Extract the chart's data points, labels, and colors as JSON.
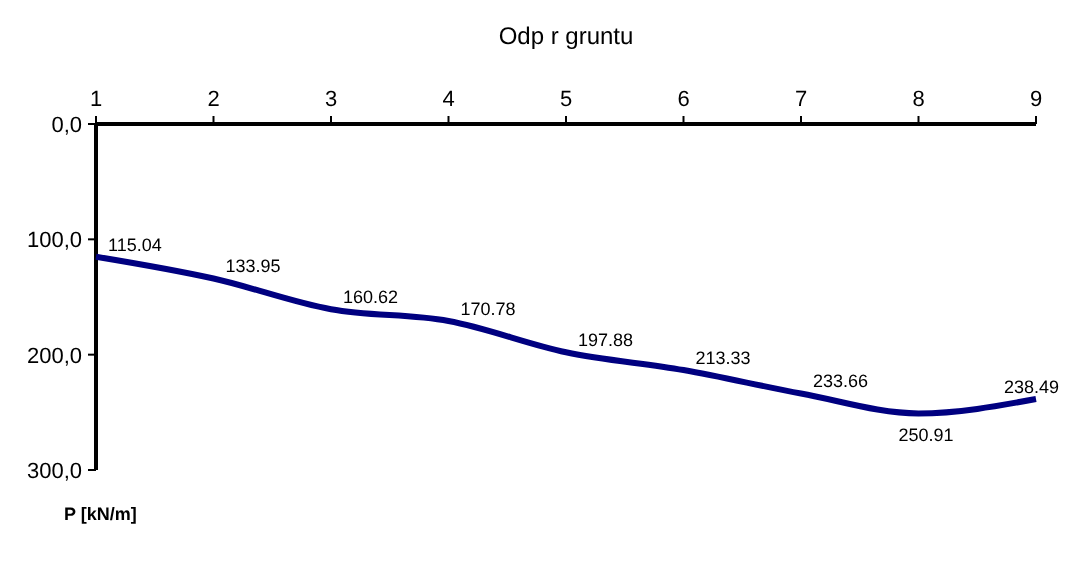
{
  "chart_data": {
    "type": "line",
    "title": "Odp  r gruntu",
    "ylabel": "P [kN/m]",
    "x": [
      1,
      2,
      3,
      4,
      5,
      6,
      7,
      8,
      9
    ],
    "series": [
      {
        "color": "#000080",
        "values": [
          115.04,
          133.95,
          160.62,
          170.78,
          197.88,
          213.33,
          233.66,
          250.91,
          238.49
        ]
      }
    ],
    "xlim": [
      1,
      9
    ],
    "xticks": [
      1,
      2,
      3,
      4,
      5,
      6,
      7,
      8,
      9
    ],
    "ylim": [
      300,
      0
    ],
    "yticks": [
      {
        "value": 0,
        "label": "0,0"
      },
      {
        "value": 100,
        "label": "100,0"
      },
      {
        "value": 200,
        "label": "200,0"
      },
      {
        "value": 300,
        "label": "300,0"
      }
    ],
    "data_labels": true,
    "grid": false,
    "marker": "none",
    "line_style": "solid"
  }
}
